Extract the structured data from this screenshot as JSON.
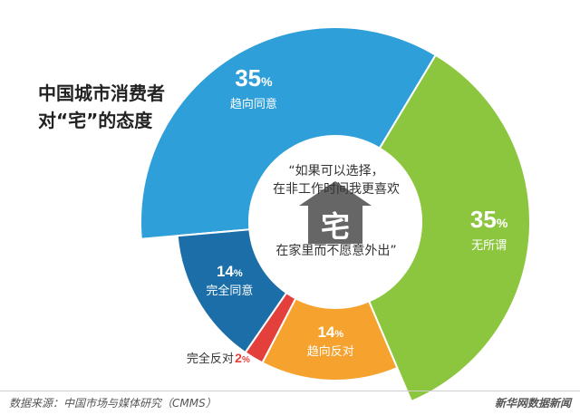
{
  "title_lines": [
    "中国城市消费者",
    "对“宅”的态度"
  ],
  "quote": {
    "line1": "“如果可以选择，",
    "line2": "在非工作时间我更喜欢",
    "line3": "在家里而不愿意外出”"
  },
  "center_icon": {
    "name": "house-icon",
    "glyph": "宅"
  },
  "footer": {
    "source": "数据来源：中国市场与媒体研究（CMMS）",
    "brand": "新华网数据新闻"
  },
  "colors": {
    "趋向同意": "#2e9fd9",
    "无所谓": "#8cc63f",
    "趋向反对": "#f5a22f",
    "完全反对": "#e3403b",
    "完全同意": "#1b6ea8",
    "center": "#ffffff",
    "icon": "#666666"
  },
  "chart_data": {
    "type": "pie",
    "style": "donut",
    "slices": [
      {
        "label": "趋向同意",
        "value": 35,
        "value_label": "35",
        "unit": "%"
      },
      {
        "label": "无所谓",
        "value": 35,
        "value_label": "35",
        "unit": "%"
      },
      {
        "label": "趋向反对",
        "value": 14,
        "value_label": "14",
        "unit": "%"
      },
      {
        "label": "完全反对",
        "value": 2,
        "value_label": "2",
        "unit": "%"
      },
      {
        "label": "完全同意",
        "value": 14,
        "value_label": "14",
        "unit": "%"
      }
    ]
  }
}
